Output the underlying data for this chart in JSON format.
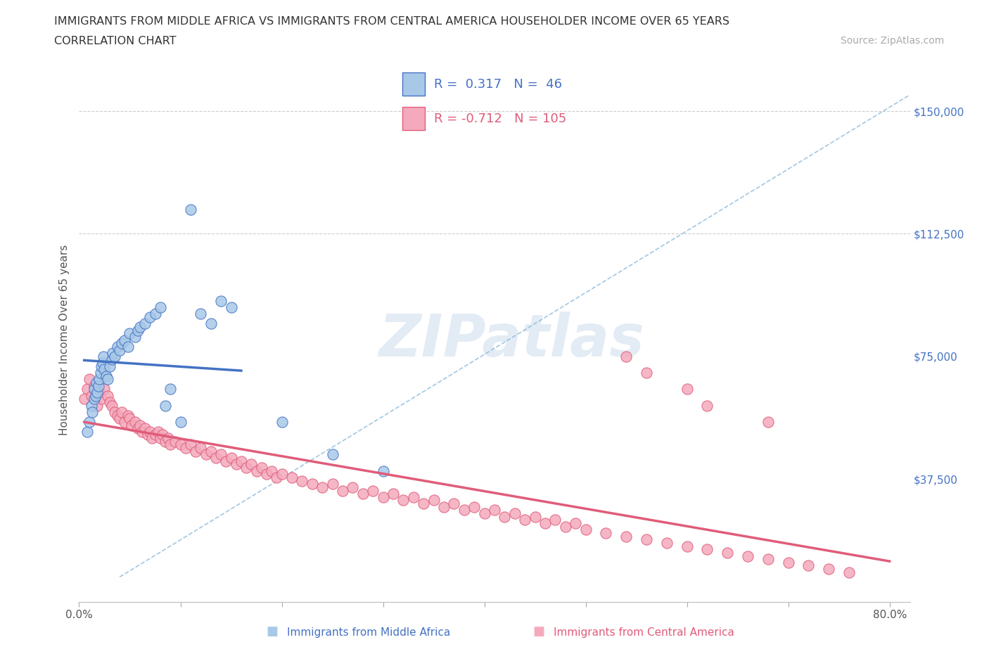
{
  "title_line1": "IMMIGRANTS FROM MIDDLE AFRICA VS IMMIGRANTS FROM CENTRAL AMERICA HOUSEHOLDER INCOME OVER 65 YEARS",
  "title_line2": "CORRELATION CHART",
  "source_text": "Source: ZipAtlas.com",
  "ylabel": "Householder Income Over 65 years",
  "R1": 0.317,
  "N1": 46,
  "R2": -0.712,
  "N2": 105,
  "color1_fill": "#a8c8e8",
  "color1_edge": "#4472c4",
  "color2_fill": "#f4aabc",
  "color2_edge": "#e05c7a",
  "color1_trend": "#4472c4",
  "color2_trend": "#e05c7a",
  "color_diag": "#7bafd4",
  "xlim": [
    0.0,
    0.82
  ],
  "ylim": [
    0,
    160000
  ],
  "yticks": [
    0,
    37500,
    75000,
    112500,
    150000
  ],
  "ytick_labels": [
    "",
    "$37,500",
    "$75,000",
    "$112,500",
    "$150,000"
  ],
  "xticks": [
    0.0,
    0.1,
    0.2,
    0.3,
    0.4,
    0.5,
    0.6,
    0.7,
    0.8
  ],
  "watermark": "ZIPatlas",
  "legend_label1": "Immigrants from Middle Africa",
  "legend_label2": "Immigrants from Central America",
  "blue_x": [
    0.008,
    0.01,
    0.012,
    0.013,
    0.015,
    0.015,
    0.016,
    0.017,
    0.018,
    0.019,
    0.02,
    0.021,
    0.022,
    0.023,
    0.024,
    0.025,
    0.027,
    0.028,
    0.03,
    0.032,
    0.033,
    0.035,
    0.038,
    0.04,
    0.042,
    0.045,
    0.048,
    0.05,
    0.055,
    0.058,
    0.06,
    0.065,
    0.07,
    0.075,
    0.08,
    0.085,
    0.09,
    0.1,
    0.11,
    0.12,
    0.13,
    0.14,
    0.15,
    0.2,
    0.25,
    0.3
  ],
  "blue_y": [
    52000,
    55000,
    60000,
    58000,
    62000,
    65000,
    63000,
    67000,
    64000,
    66000,
    68000,
    70000,
    72000,
    73000,
    75000,
    71000,
    69000,
    68000,
    72000,
    74000,
    76000,
    75000,
    78000,
    77000,
    79000,
    80000,
    78000,
    82000,
    81000,
    83000,
    84000,
    85000,
    87000,
    88000,
    90000,
    60000,
    65000,
    55000,
    120000,
    88000,
    85000,
    92000,
    90000,
    55000,
    45000,
    40000
  ],
  "pink_x": [
    0.005,
    0.008,
    0.01,
    0.012,
    0.015,
    0.018,
    0.02,
    0.022,
    0.025,
    0.028,
    0.03,
    0.032,
    0.035,
    0.038,
    0.04,
    0.042,
    0.045,
    0.048,
    0.05,
    0.052,
    0.055,
    0.058,
    0.06,
    0.062,
    0.065,
    0.068,
    0.07,
    0.072,
    0.075,
    0.078,
    0.08,
    0.082,
    0.085,
    0.088,
    0.09,
    0.095,
    0.1,
    0.105,
    0.11,
    0.115,
    0.12,
    0.125,
    0.13,
    0.135,
    0.14,
    0.145,
    0.15,
    0.155,
    0.16,
    0.165,
    0.17,
    0.175,
    0.18,
    0.185,
    0.19,
    0.195,
    0.2,
    0.21,
    0.22,
    0.23,
    0.24,
    0.25,
    0.26,
    0.27,
    0.28,
    0.29,
    0.3,
    0.31,
    0.32,
    0.33,
    0.34,
    0.35,
    0.36,
    0.37,
    0.38,
    0.39,
    0.4,
    0.41,
    0.42,
    0.43,
    0.44,
    0.45,
    0.46,
    0.47,
    0.48,
    0.49,
    0.5,
    0.52,
    0.54,
    0.56,
    0.58,
    0.6,
    0.62,
    0.64,
    0.66,
    0.68,
    0.7,
    0.72,
    0.74,
    0.76,
    0.54,
    0.56,
    0.6,
    0.62,
    0.68
  ],
  "pink_y": [
    62000,
    65000,
    68000,
    63000,
    66000,
    60000,
    64000,
    62000,
    65000,
    63000,
    61000,
    60000,
    58000,
    57000,
    56000,
    58000,
    55000,
    57000,
    56000,
    54000,
    55000,
    53000,
    54000,
    52000,
    53000,
    51000,
    52000,
    50000,
    51000,
    52000,
    50000,
    51000,
    49000,
    50000,
    48000,
    49000,
    48000,
    47000,
    48000,
    46000,
    47000,
    45000,
    46000,
    44000,
    45000,
    43000,
    44000,
    42000,
    43000,
    41000,
    42000,
    40000,
    41000,
    39000,
    40000,
    38000,
    39000,
    38000,
    37000,
    36000,
    35000,
    36000,
    34000,
    35000,
    33000,
    34000,
    32000,
    33000,
    31000,
    32000,
    30000,
    31000,
    29000,
    30000,
    28000,
    29000,
    27000,
    28000,
    26000,
    27000,
    25000,
    26000,
    24000,
    25000,
    23000,
    24000,
    22000,
    21000,
    20000,
    19000,
    18000,
    17000,
    16000,
    15000,
    14000,
    13000,
    12000,
    11000,
    10000,
    9000,
    75000,
    70000,
    65000,
    60000,
    55000
  ]
}
